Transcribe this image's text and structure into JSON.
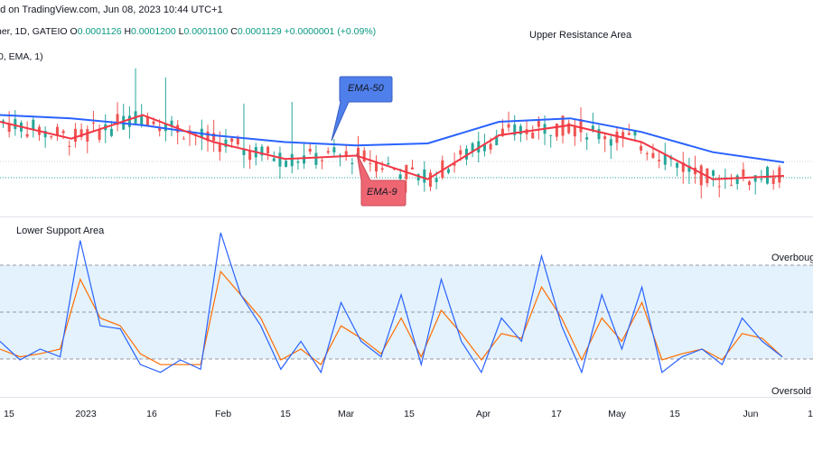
{
  "header": {
    "published": "ed on TradingView.com, Jun 08, 2023 10:44 UTC+1",
    "symbol": "her, 1D, GATEIO",
    "ohlc": [
      {
        "key": "O",
        "value": "0.0001126"
      },
      {
        "key": "H",
        "value": "0.0001200"
      },
      {
        "key": "L",
        "value": "0.0001100"
      },
      {
        "key": "C",
        "value": "0.0001129"
      }
    ],
    "change": "+0.0000001 (+0.09%)",
    "ema_params": "0, EMA, 1)"
  },
  "annotations": {
    "upper_resistance": "Upper Resistance Area",
    "lower_support": "Lower Support Area",
    "ema50_label": "EMA-50",
    "ema9_label": "EMA-9",
    "overbought": "Overbought",
    "oversold": "Oversold"
  },
  "colors": {
    "up_candle": "#26a69a",
    "down_candle": "#ef5350",
    "ema50_line": "#2962ff",
    "ema9_line": "#f23645",
    "ema50_callout_fill": "#4f7fea",
    "ema9_callout_fill": "#ef6673",
    "stoch_k": "#2962ff",
    "stoch_d": "#ff6d00",
    "oscillator_band": "#e3f2fd",
    "dotted_price_line": "#26a69a"
  },
  "x_axis": {
    "ticks": [
      "15",
      "2023",
      "16",
      "Feb",
      "15",
      "Mar",
      "15",
      "Apr",
      "17",
      "May",
      "15",
      "Jun",
      "1"
    ]
  },
  "chart_data": [
    {
      "type": "candlestick",
      "title": "",
      "overlays": [
        {
          "name": "EMA-50",
          "values": [
            0.000121,
            0.0001205,
            0.0001195,
            0.000118,
            0.000117,
            0.0001165,
            0.0001168,
            0.00012,
            0.0001205,
            0.0001185,
            0.0001155,
            0.000114
          ]
        },
        {
          "name": "EMA-9",
          "values": [
            0.00012,
            0.0001175,
            0.000121,
            0.000117,
            0.0001145,
            0.000115,
            0.0001115,
            0.000118,
            0.0001195,
            0.000117,
            0.0001115,
            0.000112
          ]
        }
      ],
      "last_close": 0.0001129
    },
    {
      "type": "line",
      "title": "",
      "ylim": [
        0,
        100
      ],
      "levels": [
        80,
        50,
        20
      ],
      "series": [
        {
          "values": [
            30,
            18,
            25,
            20,
            95,
            40,
            38,
            15,
            10,
            18,
            12,
            100,
            60,
            40,
            12,
            30,
            10,
            55,
            30,
            20,
            60,
            15,
            70,
            30,
            10,
            45,
            30,
            85,
            40,
            10,
            60,
            25,
            65,
            10,
            20,
            25,
            15,
            45,
            30,
            20
          ]
        },
        {
          "values": [
            25,
            20,
            22,
            25,
            70,
            45,
            40,
            22,
            15,
            15,
            15,
            75,
            60,
            45,
            18,
            25,
            15,
            40,
            32,
            22,
            45,
            20,
            50,
            35,
            18,
            35,
            32,
            65,
            45,
            18,
            45,
            30,
            55,
            18,
            22,
            25,
            18,
            35,
            32,
            20
          ]
        }
      ]
    }
  ]
}
